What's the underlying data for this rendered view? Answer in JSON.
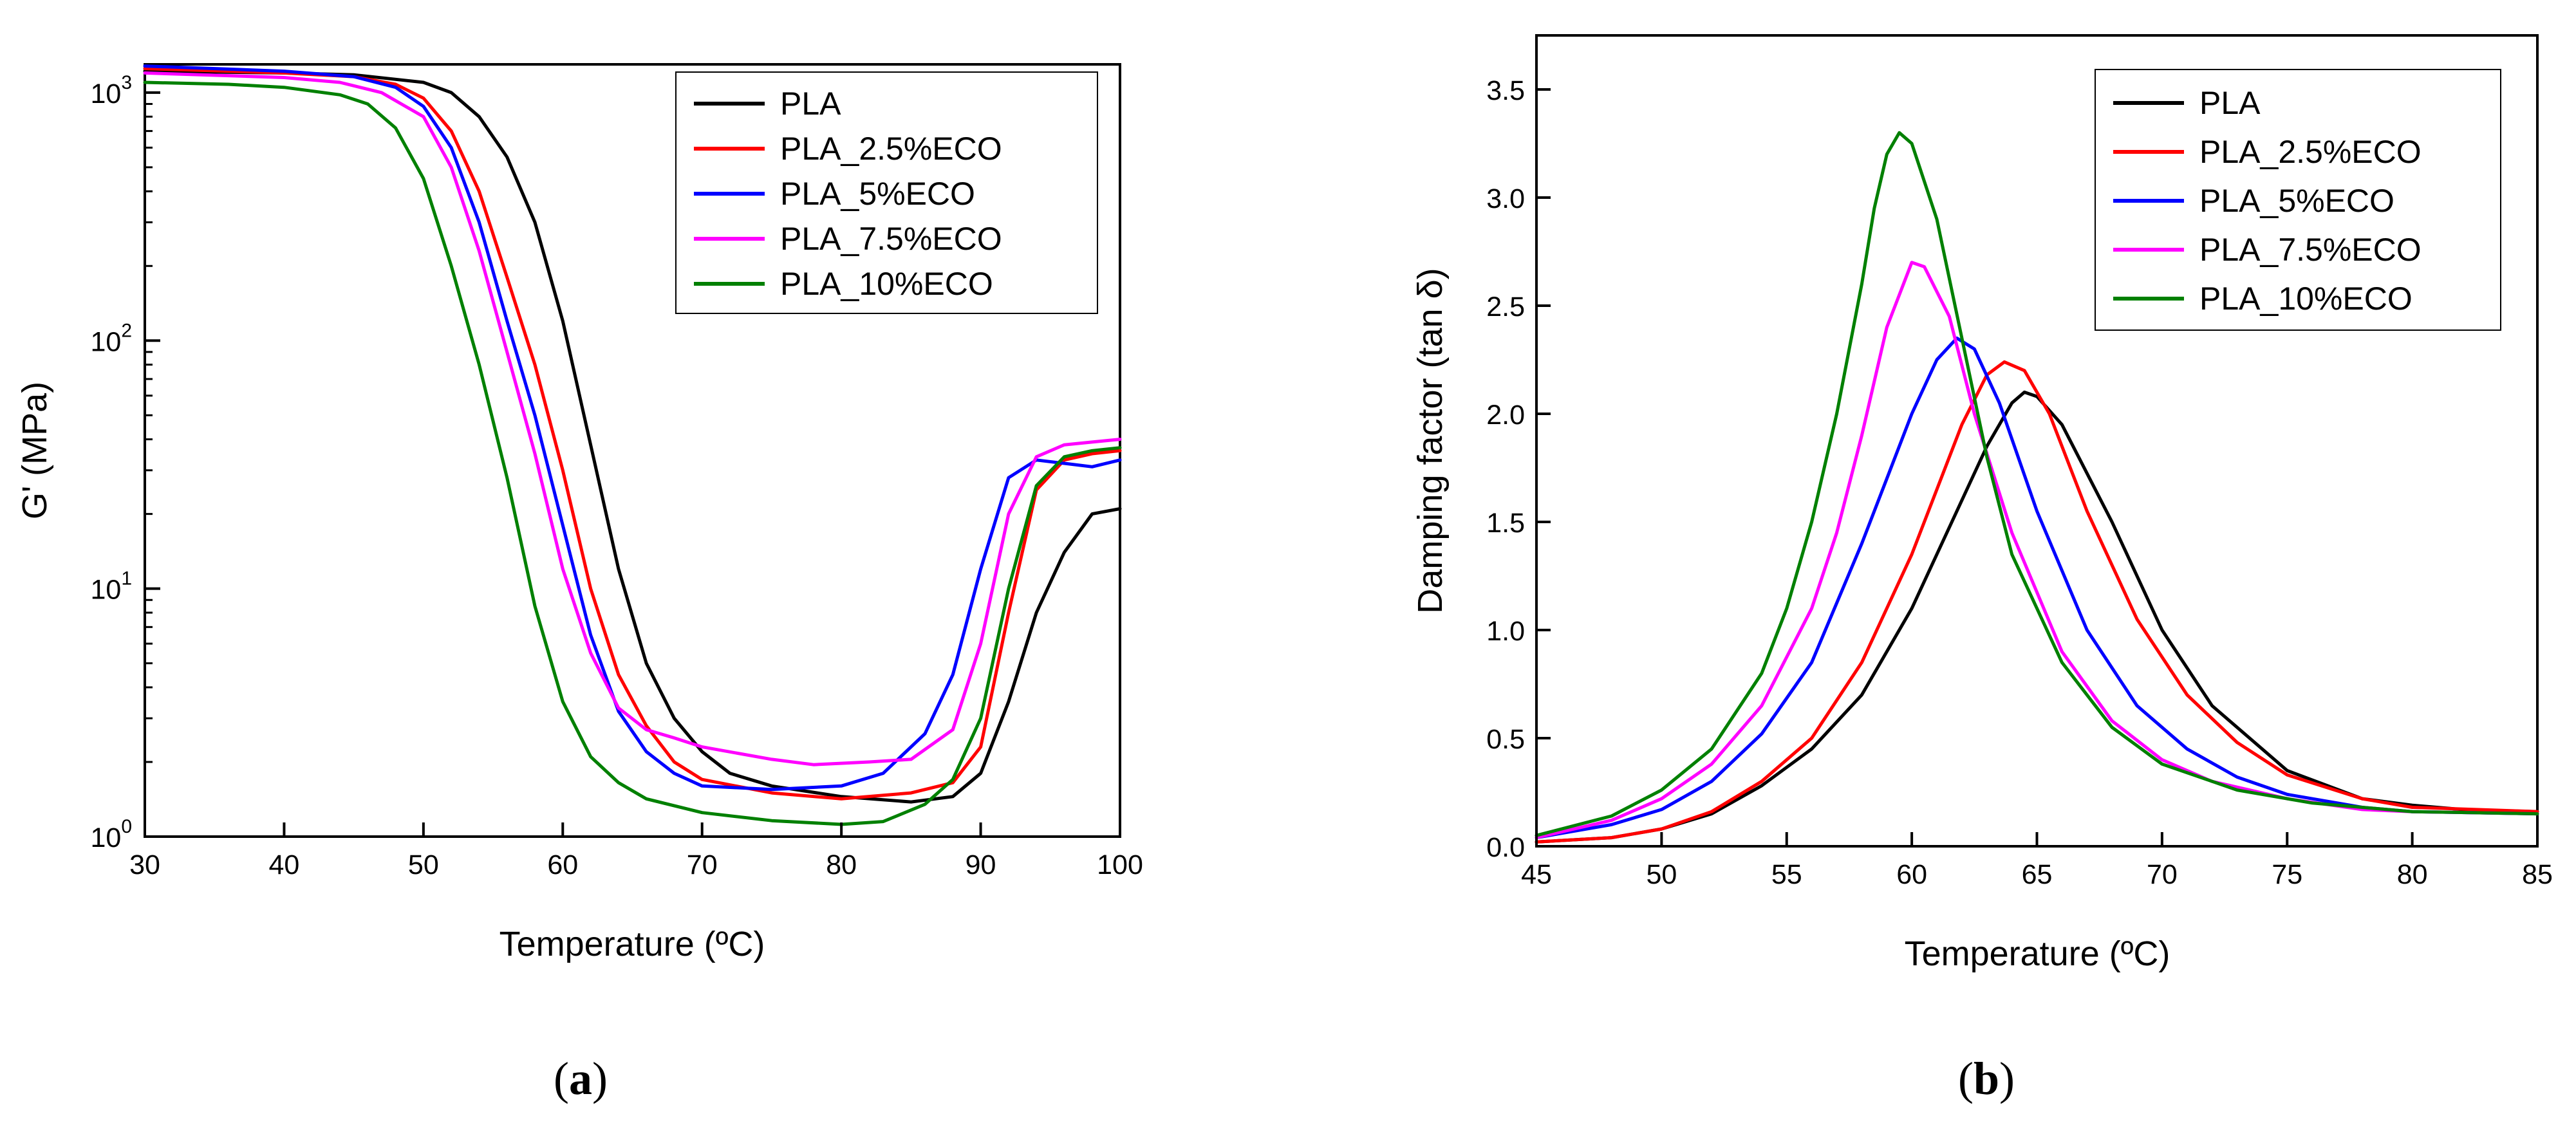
{
  "chart_data": [
    {
      "type": "line",
      "panel_label": "a",
      "xlabel": "Temperature (ºC)",
      "ylabel": "G' (MPa)",
      "yscale": "log",
      "xlim": [
        30,
        100
      ],
      "ylim": [
        1,
        1300
      ],
      "xticks": [
        30,
        40,
        50,
        60,
        70,
        80,
        90,
        100
      ],
      "ytick_base": "10",
      "ytick_exponents": [
        "0",
        "1",
        "2",
        "3"
      ],
      "ytick_values": [
        1,
        10,
        100,
        1000
      ],
      "legend_position": "top-right",
      "series": [
        {
          "name": "PLA",
          "color": "#000000",
          "x": [
            30,
            40,
            45,
            50,
            52,
            54,
            56,
            58,
            60,
            62,
            64,
            66,
            68,
            70,
            72,
            75,
            80,
            85,
            88,
            90,
            92,
            94,
            96,
            98,
            100
          ],
          "y": [
            1220,
            1200,
            1180,
            1100,
            1000,
            800,
            550,
            300,
            120,
            38,
            12,
            5,
            3,
            2.2,
            1.8,
            1.6,
            1.45,
            1.38,
            1.45,
            1.8,
            3.5,
            8,
            14,
            20,
            21
          ]
        },
        {
          "name": "PLA_2.5%ECO",
          "color": "#ff0000",
          "x": [
            30,
            40,
            45,
            48,
            50,
            52,
            54,
            56,
            58,
            60,
            62,
            64,
            66,
            68,
            70,
            75,
            80,
            85,
            88,
            90,
            92,
            94,
            96,
            98,
            100
          ],
          "y": [
            1250,
            1200,
            1160,
            1080,
            950,
            700,
            400,
            180,
            80,
            30,
            10,
            4.5,
            2.8,
            2.0,
            1.7,
            1.5,
            1.42,
            1.5,
            1.65,
            2.3,
            8,
            25,
            33,
            35,
            36
          ]
        },
        {
          "name": "PLA_5%ECO",
          "color": "#0000ff",
          "x": [
            30,
            40,
            45,
            48,
            50,
            52,
            54,
            56,
            58,
            60,
            62,
            64,
            66,
            68,
            70,
            75,
            80,
            83,
            86,
            88,
            90,
            92,
            94,
            96,
            98,
            100
          ],
          "y": [
            1280,
            1220,
            1160,
            1050,
            880,
            600,
            300,
            120,
            50,
            18,
            6.5,
            3.2,
            2.2,
            1.8,
            1.6,
            1.55,
            1.6,
            1.8,
            2.6,
            4.5,
            12,
            28,
            33,
            32,
            31,
            33
          ]
        },
        {
          "name": "PLA_7.5%ECO",
          "color": "#ff00ff",
          "x": [
            30,
            40,
            44,
            47,
            50,
            52,
            54,
            56,
            58,
            60,
            62,
            64,
            66,
            68,
            70,
            75,
            78,
            82,
            85,
            88,
            90,
            92,
            94,
            96,
            98,
            100
          ],
          "y": [
            1200,
            1150,
            1100,
            1000,
            800,
            500,
            230,
            90,
            35,
            12,
            5.5,
            3.3,
            2.7,
            2.5,
            2.3,
            2.05,
            1.95,
            2.0,
            2.05,
            2.7,
            6,
            20,
            34,
            38,
            39,
            40
          ]
        },
        {
          "name": "PLA_10%ECO",
          "color": "#008000",
          "x": [
            30,
            36,
            40,
            44,
            46,
            48,
            50,
            52,
            54,
            56,
            58,
            60,
            62,
            64,
            66,
            70,
            75,
            80,
            83,
            86,
            88,
            90,
            92,
            94,
            96,
            98,
            100
          ],
          "y": [
            1100,
            1080,
            1050,
            980,
            900,
            720,
            450,
            200,
            80,
            28,
            8.5,
            3.5,
            2.1,
            1.65,
            1.42,
            1.25,
            1.16,
            1.12,
            1.15,
            1.35,
            1.7,
            3,
            10,
            26,
            34,
            36,
            37
          ]
        }
      ]
    },
    {
      "type": "line",
      "panel_label": "b",
      "xlabel": "Temperature (ºC)",
      "ylabel": "Damping factor (tan δ)",
      "yscale": "linear",
      "xlim": [
        45,
        85
      ],
      "ylim": [
        0,
        3.75
      ],
      "xticks": [
        45,
        50,
        55,
        60,
        65,
        70,
        75,
        80,
        85
      ],
      "yticks": [
        "0.0",
        "0.5",
        "1.0",
        "1.5",
        "2.0",
        "2.5",
        "3.0",
        "3.5"
      ],
      "ytick_values": [
        0,
        0.5,
        1.0,
        1.5,
        2.0,
        2.5,
        3.0,
        3.5
      ],
      "legend_position": "top-right",
      "series": [
        {
          "name": "PLA",
          "color": "#000000",
          "x": [
            45,
            48,
            50,
            52,
            54,
            56,
            58,
            60,
            62,
            63,
            64,
            64.5,
            65,
            66,
            68,
            70,
            72,
            75,
            78,
            80,
            82,
            85
          ],
          "y": [
            0.02,
            0.04,
            0.08,
            0.15,
            0.28,
            0.45,
            0.7,
            1.1,
            1.6,
            1.85,
            2.05,
            2.1,
            2.08,
            1.95,
            1.5,
            1.0,
            0.65,
            0.35,
            0.22,
            0.19,
            0.17,
            0.16
          ]
        },
        {
          "name": "PLA_2.5%ECO",
          "color": "#ff0000",
          "x": [
            45,
            48,
            50,
            52,
            54,
            56,
            58,
            60,
            61,
            62,
            63,
            63.7,
            64.5,
            65.5,
            67,
            69,
            71,
            73,
            75,
            78,
            80,
            85
          ],
          "y": [
            0.02,
            0.04,
            0.08,
            0.16,
            0.3,
            0.5,
            0.85,
            1.35,
            1.65,
            1.95,
            2.18,
            2.24,
            2.2,
            2.0,
            1.55,
            1.05,
            0.7,
            0.48,
            0.33,
            0.22,
            0.18,
            0.16
          ]
        },
        {
          "name": "PLA_5%ECO",
          "color": "#0000ff",
          "x": [
            45,
            48,
            50,
            52,
            54,
            56,
            58,
            59,
            60,
            61,
            61.8,
            62.5,
            63.5,
            65,
            67,
            69,
            71,
            73,
            75,
            78,
            80,
            85
          ],
          "y": [
            0.04,
            0.1,
            0.17,
            0.3,
            0.52,
            0.85,
            1.4,
            1.7,
            2.0,
            2.25,
            2.35,
            2.3,
            2.05,
            1.55,
            1.0,
            0.65,
            0.45,
            0.32,
            0.24,
            0.18,
            0.16,
            0.15
          ]
        },
        {
          "name": "PLA_7.5%ECO",
          "color": "#ff00ff",
          "x": [
            45,
            48,
            50,
            52,
            54,
            56,
            57,
            58,
            59,
            60,
            60.5,
            61.5,
            62.5,
            64,
            66,
            68,
            70,
            72,
            75,
            78,
            80,
            85
          ],
          "y": [
            0.04,
            0.12,
            0.22,
            0.38,
            0.65,
            1.1,
            1.45,
            1.9,
            2.4,
            2.7,
            2.68,
            2.45,
            2.0,
            1.45,
            0.9,
            0.58,
            0.4,
            0.3,
            0.22,
            0.17,
            0.16,
            0.15
          ]
        },
        {
          "name": "PLA_10%ECO",
          "color": "#008000",
          "x": [
            45,
            48,
            50,
            52,
            54,
            55,
            56,
            57,
            58,
            58.5,
            59,
            59.5,
            60,
            61,
            62,
            63,
            64,
            66,
            68,
            70,
            73,
            76,
            80,
            85
          ],
          "y": [
            0.05,
            0.14,
            0.26,
            0.45,
            0.8,
            1.1,
            1.5,
            2.0,
            2.6,
            2.95,
            3.2,
            3.3,
            3.25,
            2.9,
            2.35,
            1.8,
            1.35,
            0.85,
            0.55,
            0.38,
            0.26,
            0.2,
            0.16,
            0.15
          ]
        }
      ]
    }
  ]
}
